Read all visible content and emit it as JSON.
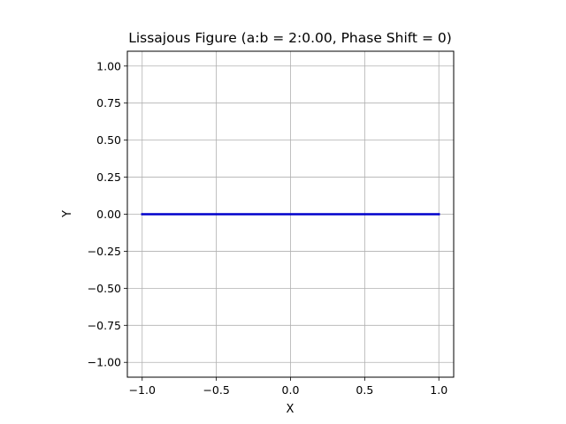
{
  "chart_data": {
    "type": "line",
    "title": "Lissajous Figure (a:b = 2:0.00, Phase Shift = 0)",
    "xlabel": "X",
    "ylabel": "Y",
    "xlim": [
      -1.1,
      1.1
    ],
    "ylim": [
      -1.1,
      1.1
    ],
    "grid": true,
    "x_ticks": [
      -1.0,
      -0.5,
      0.0,
      0.5,
      1.0
    ],
    "x_tick_labels": [
      "−1.0",
      "−0.5",
      "0.0",
      "0.5",
      "1.0"
    ],
    "y_ticks": [
      1.0,
      0.75,
      0.5,
      0.25,
      0.0,
      -0.25,
      -0.5,
      -0.75,
      -1.0
    ],
    "y_tick_labels": [
      "1.00",
      "0.75",
      "0.50",
      "0.25",
      "0.00",
      "−0.25",
      "−0.50",
      "−0.75",
      "−1.00"
    ],
    "series": [
      {
        "color": "#0000cc",
        "x": [
          -1.0,
          -0.5,
          0.0,
          0.5,
          1.0
        ],
        "y": [
          0.0,
          0.0,
          0.0,
          0.0,
          0.0
        ]
      }
    ]
  }
}
